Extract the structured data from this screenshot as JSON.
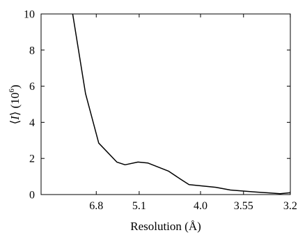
{
  "chart_data": {
    "type": "line",
    "xlabel": "Resolution (Å)",
    "ylabel": "⟨I⟩ (10⁶)",
    "ylabel_parts": {
      "i": "I",
      "unit": "(10",
      "exp": "6",
      "close": ")"
    },
    "x_unit": "1/d² (Å⁻²)",
    "xlim": [
      0.0,
      0.0977
    ],
    "ylim": [
      0,
      10
    ],
    "x_ticks": [
      {
        "label": "6.8",
        "value": 0.02163
      },
      {
        "label": "5.1",
        "value": 0.03845
      },
      {
        "label": "4.0",
        "value": 0.0625
      },
      {
        "label": "3.55",
        "value": 0.07935
      },
      {
        "label": "3.2",
        "value": 0.09766
      }
    ],
    "y_ticks": [
      0,
      2,
      4,
      6,
      8,
      10
    ],
    "x": [
      0.0124,
      0.0174,
      0.0226,
      0.0297,
      0.0329,
      0.038,
      0.0418,
      0.0499,
      0.0547,
      0.058,
      0.0685,
      0.0742,
      0.0832,
      0.0937,
      0.0977
    ],
    "series": [
      {
        "values": [
          10.0,
          5.6,
          2.85,
          1.8,
          1.65,
          1.8,
          1.75,
          1.3,
          0.85,
          0.55,
          0.4,
          0.25,
          0.15,
          0.05,
          0.1
        ]
      }
    ]
  }
}
